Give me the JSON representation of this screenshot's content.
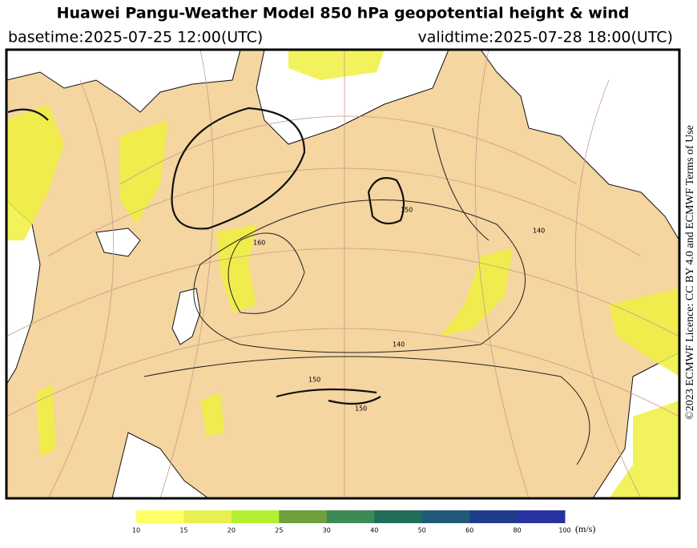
{
  "header": {
    "title": "Huawei Pangu-Weather Model 850 hPa geopotential height & wind",
    "basetime": "basetime:2025-07-25 12:00(UTC)",
    "validtime": "validtime:2025-07-28 18:00(UTC)"
  },
  "credit": "©2023 ECMWF Licence: CC BY 4.0 and ECMWF Terms of Use",
  "map": {
    "contour_labels": [
      "160",
      "150",
      "140",
      "150",
      "140",
      "150"
    ]
  },
  "colorbar": {
    "ticks": [
      10,
      15,
      20,
      25,
      30,
      40,
      50,
      60,
      80,
      100
    ],
    "colors": [
      "#ffff66",
      "#e8f050",
      "#b4f032",
      "#6ea03c",
      "#3c8a55",
      "#1e6e5a",
      "#205a78",
      "#203c8c",
      "#2832a0"
    ],
    "unit": "(m/s)"
  }
}
